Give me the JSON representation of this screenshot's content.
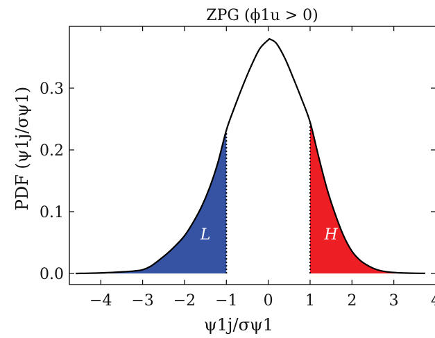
{
  "chart_data": {
    "type": "area",
    "title": "ZPG (ϕ1u > 0)",
    "xlabel": "ψ1j/σψ1",
    "ylabel": "PDF (ψ1j/σψ1)",
    "xlim": [
      -4.75,
      4
    ],
    "ylim": [
      -0.018,
      0.4
    ],
    "x_ticks": [
      -4,
      -3,
      -2,
      -1,
      0,
      1,
      2,
      3,
      4
    ],
    "x_tick_labels": [
      "−4",
      "−3",
      "−2",
      "−1",
      "0",
      "1",
      "2",
      "3",
      "4"
    ],
    "y_ticks": [
      0.0,
      0.1,
      0.2,
      0.3
    ],
    "y_tick_labels": [
      "0.0",
      "0.1",
      "0.2",
      "0.3"
    ],
    "grid": false,
    "legend": "none",
    "series": [
      {
        "x": [
          -4.6,
          -4.0,
          -3.5,
          -3.2,
          -3.0,
          -2.8,
          -2.6,
          -2.4,
          -2.2,
          -2.0,
          -1.8,
          -1.6,
          -1.4,
          -1.2,
          -1.0,
          -0.8,
          -0.6,
          -0.4,
          -0.2,
          0.0,
          0.05,
          0.2,
          0.4,
          0.6,
          0.8,
          1.0,
          1.2,
          1.4,
          1.6,
          1.8,
          2.0,
          2.2,
          2.4,
          2.6,
          2.8,
          3.0,
          3.2,
          3.5,
          3.75
        ],
        "y": [
          0.0,
          0.0008,
          0.0025,
          0.004,
          0.006,
          0.012,
          0.022,
          0.033,
          0.046,
          0.061,
          0.082,
          0.107,
          0.139,
          0.18,
          0.232,
          0.27,
          0.305,
          0.337,
          0.364,
          0.378,
          0.379,
          0.372,
          0.348,
          0.316,
          0.282,
          0.245,
          0.19,
          0.138,
          0.096,
          0.061,
          0.036,
          0.021,
          0.012,
          0.006,
          0.003,
          0.0015,
          0.0008,
          0.0003,
          0.0002
        ],
        "color": "#000000"
      }
    ],
    "regions": [
      {
        "label": "L",
        "x_from": -4.6,
        "x_to": -1.0,
        "color": "#3653a3",
        "label_x": -1.5,
        "label_y": 0.055
      },
      {
        "label": "H",
        "x_from": 1.0,
        "x_to": 3.75,
        "color": "#ee1f24",
        "label_x": 1.5,
        "label_y": 0.055
      }
    ],
    "thresholds": [
      -1.0,
      1.0
    ]
  }
}
